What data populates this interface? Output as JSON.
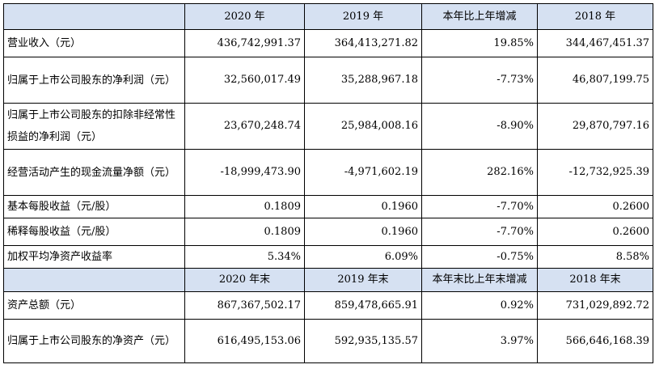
{
  "header": {
    "col_2020": "2020 年",
    "col_2019": "2019 年",
    "col_change": "本年比上年增减",
    "col_2018": "2018 年"
  },
  "rows": [
    {
      "label": "营业收入（元）",
      "v2020": "436,742,991.37",
      "v2019": "364,413,271.82",
      "change": "19.85%",
      "v2018": "344,467,451.37"
    },
    {
      "label": "归属于上市公司股东的净利润（元）",
      "v2020": "32,560,017.49",
      "v2019": "35,288,967.18",
      "change": "-7.73%",
      "v2018": "46,807,199.75"
    },
    {
      "label": "归属于上市公司股东的扣除非经常性损益的净利润（元）",
      "v2020": "23,670,248.74",
      "v2019": "25,984,008.16",
      "change": "-8.90%",
      "v2018": "29,870,797.16"
    },
    {
      "label": "经营活动产生的现金流量净额（元）",
      "v2020": "-18,999,473.90",
      "v2019": "-4,971,602.19",
      "change": "282.16%",
      "v2018": "-12,732,925.39"
    },
    {
      "label": "基本每股收益（元/股）",
      "v2020": "0.1809",
      "v2019": "0.1960",
      "change": "-7.70%",
      "v2018": "0.2600"
    },
    {
      "label": "稀释每股收益（元/股）",
      "v2020": "0.1809",
      "v2019": "0.1960",
      "change": "-7.70%",
      "v2018": "0.2600"
    },
    {
      "label": "加权平均净资产收益率",
      "v2020": "5.34%",
      "v2019": "6.09%",
      "change": "-0.75%",
      "v2018": "8.58%"
    }
  ],
  "header2": {
    "col_2020": "2020 年末",
    "col_2019": "2019 年末",
    "col_change": "本年末比上年末增减",
    "col_2018": "2018 年末"
  },
  "rows2": [
    {
      "label": "资产总额（元）",
      "v2020": "867,367,502.17",
      "v2019": "859,478,665.91",
      "change": "0.92%",
      "v2018": "731,029,892.72"
    },
    {
      "label": "归属于上市公司股东的净资产（元）",
      "v2020": "616,495,153.06",
      "v2019": "592,935,135.57",
      "change": "3.97%",
      "v2018": "566,646,168.39"
    }
  ]
}
